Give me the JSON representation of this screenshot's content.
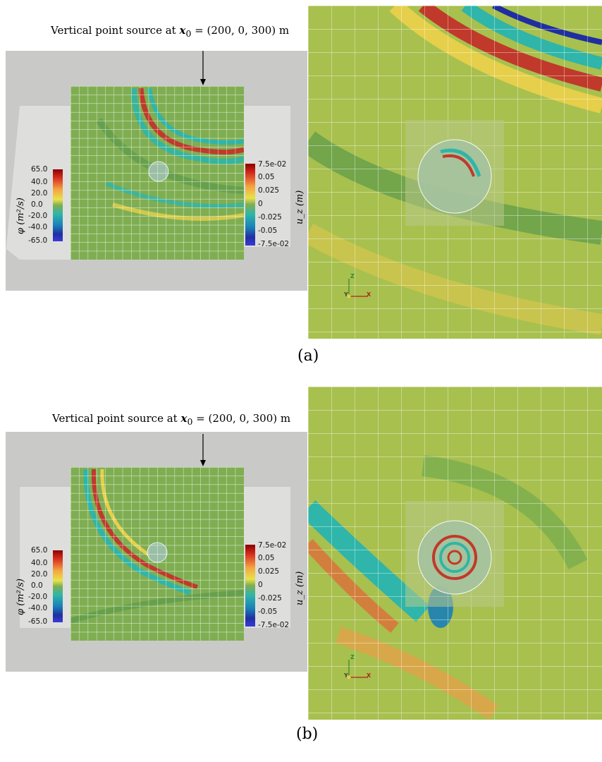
{
  "panels": [
    {
      "id": "a",
      "source_text": "Vertical point source at",
      "source_math": "x",
      "source_sub": "0",
      "source_value": "= (200, 0, 300) m",
      "phi_label": "φ (m²/s)",
      "phi_ticks": [
        "65.0",
        "40.0",
        "20.0",
        "0.0",
        "-20.0",
        "-40.0",
        "-65.0"
      ],
      "uz_label": "u_z (m)",
      "uz_ticks": [
        "7.5e-02",
        "0.05",
        "0.025",
        "0",
        "-0.025",
        "-0.05",
        "-7.5e-02"
      ],
      "axes": {
        "z": "Z",
        "y": "Y",
        "x": "X"
      },
      "sublabel": "(a)"
    },
    {
      "id": "b",
      "source_text": "Vertical point source at",
      "source_math": "x",
      "source_sub": "0",
      "source_value": "= (200, 0, 300) m",
      "phi_label": "φ (m²/s)",
      "phi_ticks": [
        "65.0",
        "40.0",
        "20.0",
        "0.0",
        "-20.0",
        "-40.0",
        "-65.0"
      ],
      "uz_label": "u_z (m)",
      "uz_ticks": [
        "7.5e-02",
        "0.05",
        "0.025",
        "0",
        "-0.025",
        "-0.05",
        "-7.5e-02"
      ],
      "axes": {
        "z": "Z",
        "y": "Y",
        "x": "X"
      },
      "sublabel": "(b)"
    }
  ],
  "colors": {
    "background_field": "#7fae52",
    "grid_line": "#ffffff",
    "frame_gray": "#c9cac7",
    "frame_light": "#dedfdc",
    "positive_red": "#c0392b",
    "negative_blue": "#1f2fa0",
    "cyan": "#2fb5a9",
    "yellow": "#e6cf4a"
  }
}
